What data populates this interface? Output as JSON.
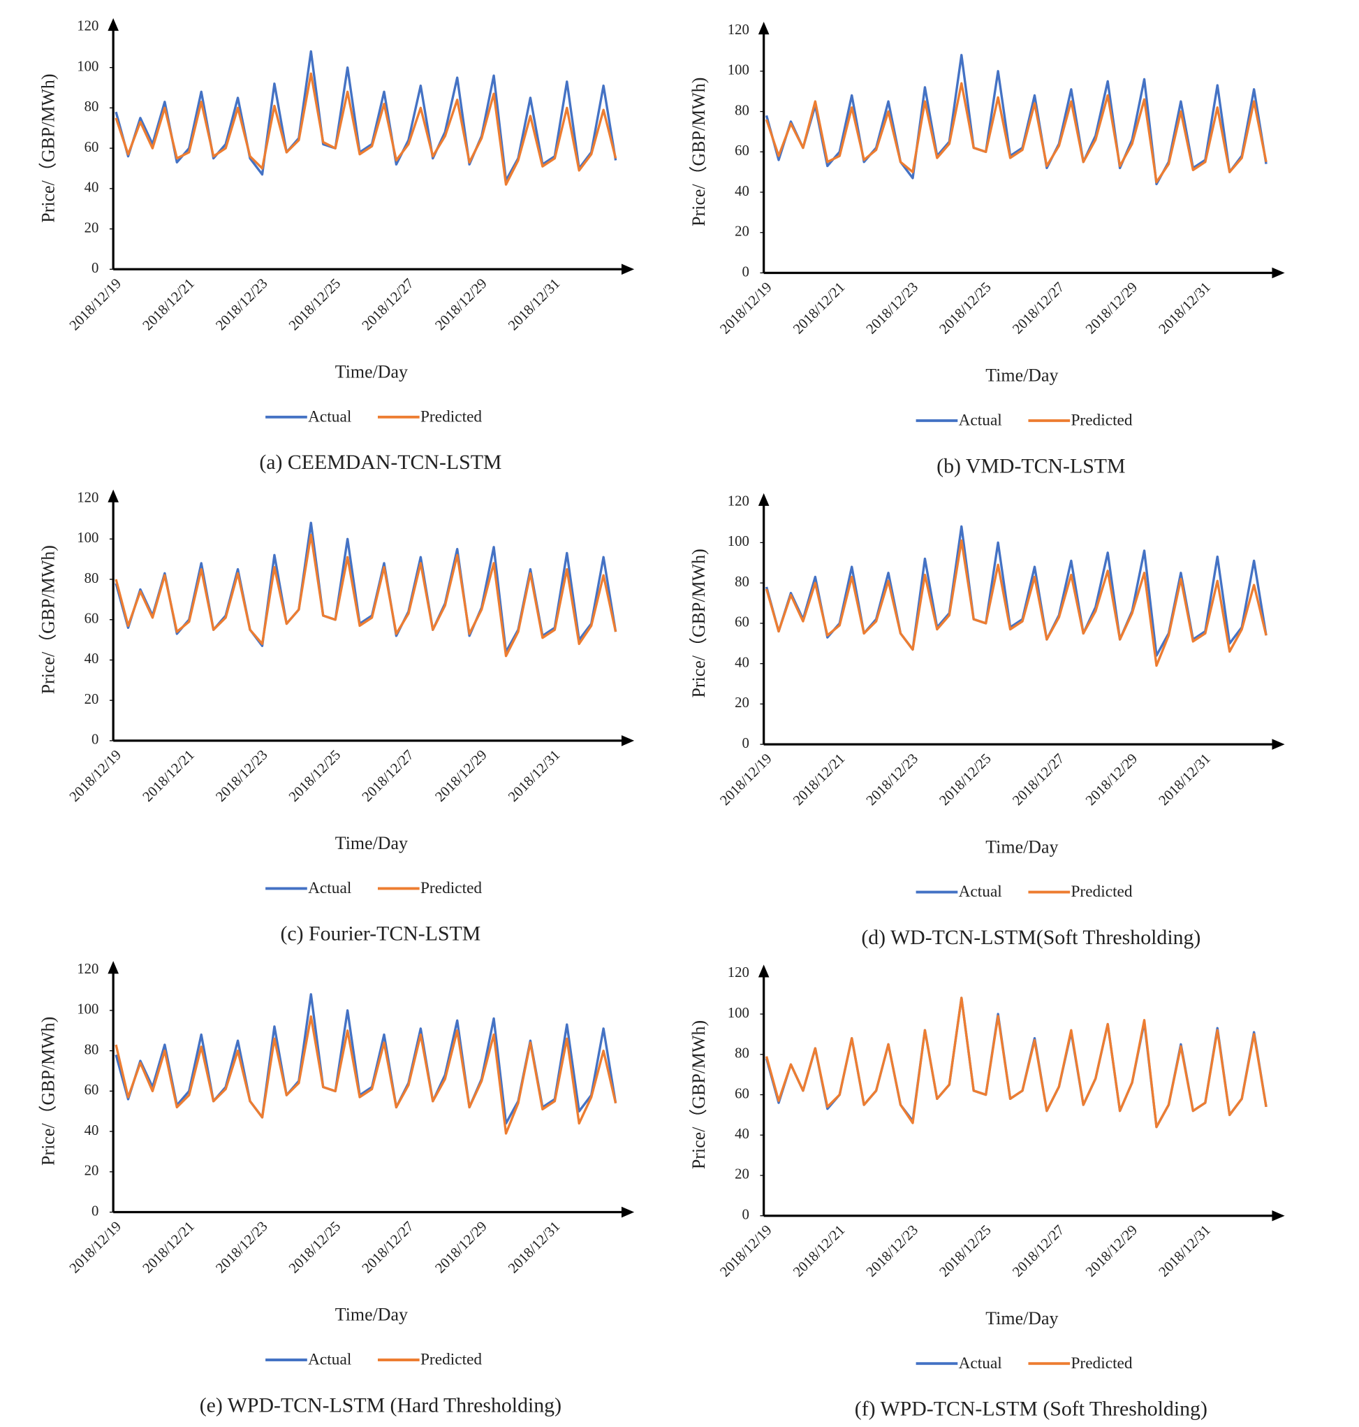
{
  "chart_data": [
    {
      "type": "line",
      "title": "(a) CEEMDAN-TCN-LSTM",
      "x_label": "Time/Day",
      "y_label": "Price/（GBP/MWh)",
      "categories": [
        "2018/12/19",
        null,
        null,
        null,
        null,
        null,
        "2018/12/21",
        null,
        null,
        null,
        null,
        null,
        "2018/12/23",
        null,
        null,
        null,
        null,
        null,
        "2018/12/25",
        null,
        null,
        null,
        null,
        null,
        "2018/12/27",
        null,
        null,
        null,
        null,
        null,
        "2018/12/29",
        null,
        null,
        null,
        null,
        null,
        "2018/12/31",
        null,
        null,
        null,
        null,
        null
      ],
      "series": [
        {
          "name": "Actual",
          "color": "#4472c4",
          "values": [
            78,
            56,
            75,
            62,
            83,
            53,
            60,
            88,
            55,
            62,
            85,
            55,
            47,
            92,
            58,
            65,
            108,
            62,
            60,
            100,
            58,
            62,
            88,
            52,
            64,
            91,
            55,
            68,
            95,
            52,
            66,
            96,
            44,
            55,
            85,
            52,
            56,
            93,
            50,
            58,
            91,
            54
          ]
        },
        {
          "name": "Predicted",
          "color": "#ed7d31",
          "values": [
            75,
            57,
            73,
            60,
            80,
            55,
            58,
            83,
            56,
            60,
            80,
            56,
            50,
            81,
            58,
            64,
            97,
            63,
            60,
            88,
            57,
            61,
            82,
            54,
            62,
            80,
            56,
            66,
            84,
            53,
            65,
            87,
            42,
            54,
            76,
            51,
            55,
            80,
            49,
            57,
            79,
            55
          ]
        }
      ],
      "ylim": [
        0,
        120
      ],
      "yticks": [
        0,
        20,
        40,
        60,
        80,
        100,
        120
      ],
      "legend": "bottom"
    },
    {
      "type": "line",
      "title": "(b) VMD-TCN-LSTM",
      "x_label": "Time/Day",
      "y_label": "Price/（GBP/MWh)",
      "categories": [
        "2018/12/19",
        null,
        null,
        null,
        null,
        null,
        "2018/12/21",
        null,
        null,
        null,
        null,
        null,
        "2018/12/23",
        null,
        null,
        null,
        null,
        null,
        "2018/12/25",
        null,
        null,
        null,
        null,
        null,
        "2018/12/27",
        null,
        null,
        null,
        null,
        null,
        "2018/12/29",
        null,
        null,
        null,
        null,
        null,
        "2018/12/31",
        null,
        null,
        null,
        null,
        null
      ],
      "series": [
        {
          "name": "Actual",
          "color": "#4472c4",
          "values": [
            78,
            56,
            75,
            62,
            83,
            53,
            60,
            88,
            55,
            62,
            85,
            55,
            47,
            92,
            58,
            65,
            108,
            62,
            60,
            100,
            58,
            62,
            88,
            52,
            64,
            91,
            55,
            68,
            95,
            52,
            66,
            96,
            44,
            55,
            85,
            52,
            56,
            93,
            50,
            58,
            91,
            54
          ]
        },
        {
          "name": "Predicted",
          "color": "#ed7d31",
          "values": [
            76,
            58,
            74,
            62,
            85,
            55,
            58,
            82,
            56,
            61,
            80,
            55,
            50,
            85,
            57,
            64,
            94,
            62,
            60,
            87,
            57,
            61,
            84,
            53,
            63,
            85,
            55,
            66,
            88,
            53,
            64,
            86,
            45,
            54,
            80,
            51,
            55,
            82,
            50,
            57,
            85,
            55
          ]
        }
      ],
      "ylim": [
        0,
        120
      ],
      "yticks": [
        0,
        20,
        40,
        60,
        80,
        100,
        120
      ],
      "legend": "bottom"
    },
    {
      "type": "line",
      "title": "(c) Fourier-TCN-LSTM",
      "x_label": "Time/Day",
      "y_label": "Price/（GBP/MWh)",
      "categories": [
        "2018/12/19",
        null,
        null,
        null,
        null,
        null,
        "2018/12/21",
        null,
        null,
        null,
        null,
        null,
        "2018/12/23",
        null,
        null,
        null,
        null,
        null,
        "2018/12/25",
        null,
        null,
        null,
        null,
        null,
        "2018/12/27",
        null,
        null,
        null,
        null,
        null,
        "2018/12/29",
        null,
        null,
        null,
        null,
        null,
        "2018/12/31",
        null,
        null,
        null,
        null,
        null
      ],
      "series": [
        {
          "name": "Actual",
          "color": "#4472c4",
          "values": [
            78,
            56,
            75,
            62,
            83,
            53,
            60,
            88,
            55,
            62,
            85,
            55,
            47,
            92,
            58,
            65,
            108,
            62,
            60,
            100,
            58,
            62,
            88,
            52,
            64,
            91,
            55,
            68,
            95,
            52,
            66,
            96,
            44,
            55,
            85,
            52,
            56,
            93,
            50,
            58,
            91,
            54
          ]
        },
        {
          "name": "Predicted",
          "color": "#ed7d31",
          "values": [
            80,
            57,
            74,
            61,
            82,
            54,
            59,
            85,
            55,
            61,
            83,
            55,
            48,
            86,
            58,
            65,
            102,
            62,
            60,
            91,
            57,
            61,
            86,
            53,
            63,
            88,
            55,
            67,
            92,
            53,
            65,
            88,
            42,
            54,
            83,
            51,
            55,
            85,
            48,
            57,
            82,
            54
          ]
        }
      ],
      "ylim": [
        0,
        120
      ],
      "yticks": [
        0,
        20,
        40,
        60,
        80,
        100,
        120
      ],
      "legend": "bottom"
    },
    {
      "type": "line",
      "title": "(d) WD-TCN-LSTM(Soft Thresholding)",
      "x_label": "Time/Day",
      "y_label": "Price/（GBP/MWh)",
      "categories": [
        "2018/12/19",
        null,
        null,
        null,
        null,
        null,
        "2018/12/21",
        null,
        null,
        null,
        null,
        null,
        "2018/12/23",
        null,
        null,
        null,
        null,
        null,
        "2018/12/25",
        null,
        null,
        null,
        null,
        null,
        "2018/12/27",
        null,
        null,
        null,
        null,
        null,
        "2018/12/29",
        null,
        null,
        null,
        null,
        null,
        "2018/12/31",
        null,
        null,
        null,
        null,
        null
      ],
      "series": [
        {
          "name": "Actual",
          "color": "#4472c4",
          "values": [
            78,
            56,
            75,
            62,
            83,
            53,
            60,
            88,
            55,
            62,
            85,
            55,
            47,
            92,
            58,
            65,
            108,
            62,
            60,
            100,
            58,
            62,
            88,
            52,
            64,
            91,
            55,
            68,
            95,
            52,
            66,
            96,
            44,
            55,
            85,
            52,
            56,
            93,
            50,
            58,
            91,
            54
          ]
        },
        {
          "name": "Predicted",
          "color": "#ed7d31",
          "values": [
            77,
            56,
            74,
            61,
            80,
            54,
            59,
            83,
            55,
            61,
            81,
            55,
            47,
            84,
            57,
            64,
            101,
            62,
            60,
            89,
            57,
            61,
            83,
            52,
            63,
            84,
            55,
            66,
            86,
            52,
            65,
            85,
            39,
            54,
            82,
            51,
            55,
            81,
            46,
            57,
            79,
            54
          ]
        }
      ],
      "ylim": [
        0,
        120
      ],
      "yticks": [
        0,
        20,
        40,
        60,
        80,
        100,
        120
      ],
      "legend": "bottom"
    },
    {
      "type": "line",
      "title": "(e) WPD-TCN-LSTM (Hard Thresholding)",
      "x_label": "Time/Day",
      "y_label": "Price/（GBP/MWh)",
      "categories": [
        "2018/12/19",
        null,
        null,
        null,
        null,
        null,
        "2018/12/21",
        null,
        null,
        null,
        null,
        null,
        "2018/12/23",
        null,
        null,
        null,
        null,
        null,
        "2018/12/25",
        null,
        null,
        null,
        null,
        null,
        "2018/12/27",
        null,
        null,
        null,
        null,
        null,
        "2018/12/29",
        null,
        null,
        null,
        null,
        null,
        "2018/12/31",
        null,
        null,
        null,
        null,
        null
      ],
      "series": [
        {
          "name": "Actual",
          "color": "#4472c4",
          "values": [
            78,
            56,
            75,
            62,
            83,
            53,
            60,
            88,
            55,
            62,
            85,
            55,
            47,
            92,
            58,
            65,
            108,
            62,
            60,
            100,
            58,
            62,
            88,
            52,
            64,
            91,
            55,
            68,
            95,
            52,
            66,
            96,
            44,
            55,
            85,
            52,
            56,
            93,
            50,
            58,
            91,
            54
          ]
        },
        {
          "name": "Predicted",
          "color": "#ed7d31",
          "values": [
            83,
            57,
            74,
            60,
            80,
            52,
            58,
            82,
            55,
            61,
            80,
            55,
            47,
            86,
            58,
            64,
            97,
            62,
            60,
            90,
            57,
            61,
            84,
            52,
            63,
            88,
            55,
            66,
            90,
            52,
            65,
            88,
            39,
            54,
            84,
            51,
            55,
            86,
            44,
            57,
            80,
            54
          ]
        }
      ],
      "ylim": [
        0,
        120
      ],
      "yticks": [
        0,
        20,
        40,
        60,
        80,
        100,
        120
      ],
      "legend": "bottom"
    },
    {
      "type": "line",
      "title": "(f) WPD-TCN-LSTM (Soft Thresholding)",
      "x_label": "Time/Day",
      "y_label": "Price/（GBP/MWh)",
      "categories": [
        "2018/12/19",
        null,
        null,
        null,
        null,
        null,
        "2018/12/21",
        null,
        null,
        null,
        null,
        null,
        "2018/12/23",
        null,
        null,
        null,
        null,
        null,
        "2018/12/25",
        null,
        null,
        null,
        null,
        null,
        "2018/12/27",
        null,
        null,
        null,
        null,
        null,
        "2018/12/29",
        null,
        null,
        null,
        null,
        null,
        "2018/12/31",
        null,
        null,
        null,
        null,
        null
      ],
      "series": [
        {
          "name": "Actual",
          "color": "#4472c4",
          "values": [
            78,
            56,
            75,
            62,
            83,
            53,
            60,
            88,
            55,
            62,
            85,
            55,
            47,
            92,
            58,
            65,
            108,
            62,
            60,
            100,
            58,
            62,
            88,
            52,
            64,
            91,
            55,
            68,
            95,
            52,
            66,
            96,
            44,
            55,
            85,
            52,
            56,
            93,
            50,
            58,
            91,
            54
          ]
        },
        {
          "name": "Predicted",
          "color": "#ed7d31",
          "values": [
            79,
            57,
            75,
            62,
            83,
            54,
            60,
            88,
            55,
            62,
            85,
            55,
            46,
            92,
            58,
            65,
            108,
            62,
            60,
            99,
            58,
            62,
            87,
            52,
            64,
            92,
            55,
            68,
            95,
            52,
            66,
            97,
            44,
            55,
            84,
            52,
            56,
            92,
            50,
            58,
            90,
            54
          ]
        }
      ],
      "ylim": [
        0,
        120
      ],
      "yticks": [
        0,
        20,
        40,
        60,
        80,
        100,
        120
      ],
      "legend": "bottom"
    }
  ]
}
